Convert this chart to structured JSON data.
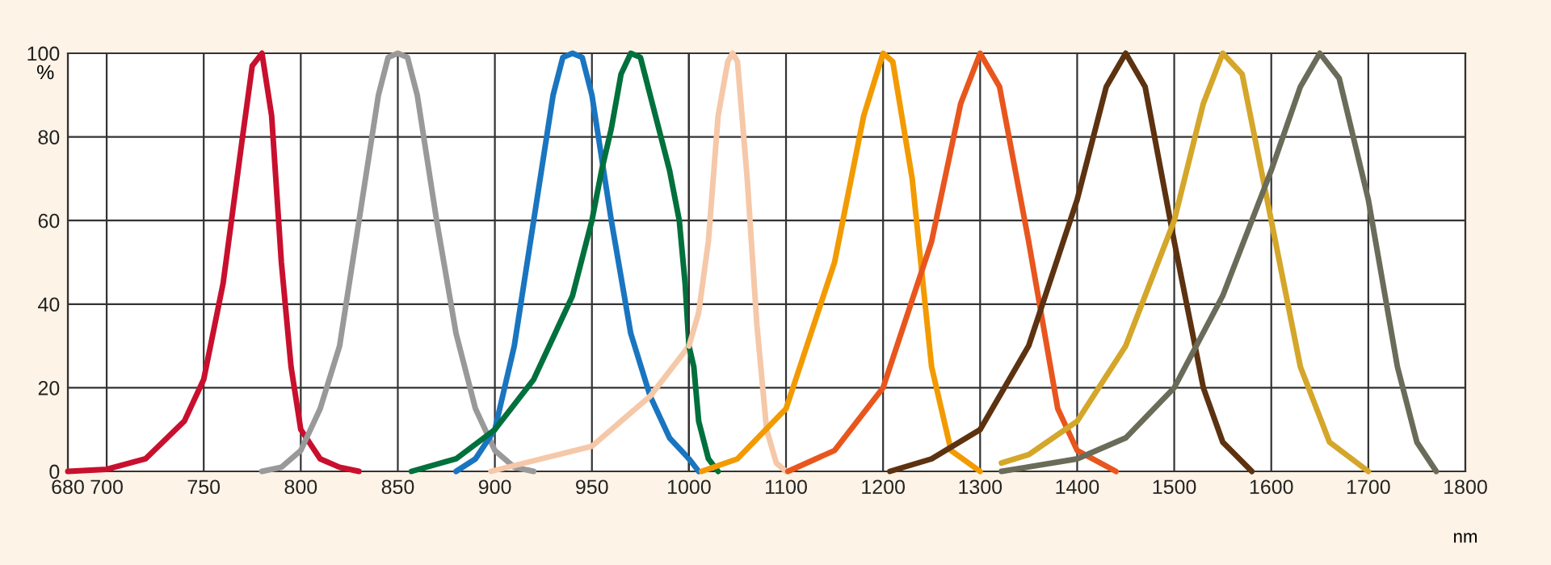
{
  "chart_data": [
    {
      "type": "line",
      "ylabel": "%",
      "xlim": [
        680,
        1000
      ],
      "ylim": [
        0,
        100
      ],
      "xticks": [
        680,
        700,
        750,
        800,
        850,
        900,
        950,
        {
          "value": 1000,
          "label": null
        }
      ],
      "yticks": [
        0,
        20,
        40,
        60,
        80,
        100
      ],
      "grid": true,
      "marker": "none",
      "line_style": "solid",
      "series": [
        {
          "color": "#c8102e",
          "x": [
            680,
            700,
            720,
            740,
            750,
            760,
            770,
            775,
            780,
            785,
            790,
            795,
            800,
            810,
            820,
            830
          ],
          "values": [
            0,
            0.5,
            3,
            12,
            22,
            45,
            80,
            97,
            100,
            85,
            50,
            25,
            10,
            3,
            1,
            0
          ]
        },
        {
          "color": "#999999",
          "x": [
            780,
            790,
            800,
            810,
            820,
            830,
            840,
            845,
            850,
            855,
            860,
            870,
            880,
            890,
            900,
            910,
            920
          ],
          "values": [
            0,
            1,
            5,
            15,
            30,
            60,
            90,
            99,
            100,
            99,
            90,
            60,
            33,
            15,
            5,
            1,
            0
          ]
        },
        {
          "color": "#1a75c0",
          "x": [
            880,
            890,
            900,
            910,
            920,
            930,
            935,
            940,
            945,
            950,
            960,
            970,
            980,
            990,
            1000
          ],
          "values": [
            0,
            3,
            10,
            30,
            60,
            90,
            99,
            100,
            99,
            90,
            60,
            33,
            18,
            8,
            3
          ]
        },
        {
          "color": "#00703c",
          "x": [
            857,
            880,
            900,
            920,
            940,
            950,
            955,
            960,
            965,
            970,
            975,
            980,
            990,
            995,
            998,
            1000
          ],
          "values": [
            0,
            3,
            10,
            22,
            42,
            60,
            72,
            82,
            95,
            100,
            99,
            90,
            72,
            60,
            45,
            30
          ]
        },
        {
          "color": "#f5c8a8",
          "x": [
            898,
            950,
            980,
            1000
          ],
          "values": [
            0,
            6,
            18,
            30
          ]
        }
      ]
    },
    {
      "type": "line",
      "xlabel": "nm",
      "xlim": [
        1000,
        1800
      ],
      "ylim": [
        0,
        100
      ],
      "xticks": [
        1000,
        1100,
        1200,
        1300,
        1400,
        1500,
        1600,
        1700,
        1800
      ],
      "yticks": [
        0,
        20,
        40,
        60,
        80,
        100
      ],
      "tick_labels": "x",
      "grid": true,
      "marker": "none",
      "line_style": "solid",
      "series": [
        {
          "color": "#1a75c0",
          "x": [
            1000,
            1010
          ],
          "values": [
            3,
            0
          ]
        },
        {
          "color": "#00703c",
          "x": [
            1000,
            1005,
            1010,
            1020,
            1030
          ],
          "values": [
            30,
            25,
            12,
            3,
            0
          ]
        },
        {
          "color": "#f5c8a8",
          "x": [
            1000,
            1010,
            1020,
            1030,
            1040,
            1045,
            1050,
            1060,
            1070,
            1080,
            1090,
            1100
          ],
          "values": [
            30,
            38,
            55,
            85,
            98,
            100,
            98,
            70,
            35,
            10,
            2,
            0
          ]
        },
        {
          "color": "#f29a00",
          "x": [
            1013,
            1050,
            1100,
            1150,
            1180,
            1200,
            1210,
            1230,
            1250,
            1270,
            1300
          ],
          "values": [
            0,
            3,
            15,
            50,
            85,
            100,
            98,
            70,
            25,
            5,
            0
          ]
        },
        {
          "color": "#e8561e",
          "x": [
            1102,
            1150,
            1200,
            1250,
            1280,
            1300,
            1320,
            1350,
            1380,
            1400,
            1440
          ],
          "values": [
            0,
            5,
            20,
            55,
            88,
            100,
            92,
            55,
            15,
            5,
            0
          ]
        },
        {
          "color": "#5c3210",
          "x": [
            1207,
            1250,
            1300,
            1350,
            1400,
            1430,
            1450,
            1470,
            1500,
            1530,
            1550,
            1580
          ],
          "values": [
            0,
            3,
            10,
            30,
            65,
            92,
            100,
            92,
            55,
            20,
            7,
            0
          ]
        },
        {
          "color": "#d4a62a",
          "x": [
            1322,
            1350,
            1400,
            1450,
            1500,
            1530,
            1550,
            1570,
            1600,
            1630,
            1660,
            1700
          ],
          "values": [
            2,
            4,
            12,
            30,
            60,
            88,
            100,
            95,
            60,
            25,
            7,
            0
          ]
        },
        {
          "color": "#6b6b5a",
          "x": [
            1322,
            1400,
            1450,
            1500,
            1550,
            1600,
            1630,
            1650,
            1670,
            1700,
            1730,
            1750,
            1770
          ],
          "values": [
            0,
            3,
            8,
            20,
            42,
            72,
            92,
            100,
            94,
            65,
            25,
            7,
            0
          ]
        }
      ]
    }
  ]
}
